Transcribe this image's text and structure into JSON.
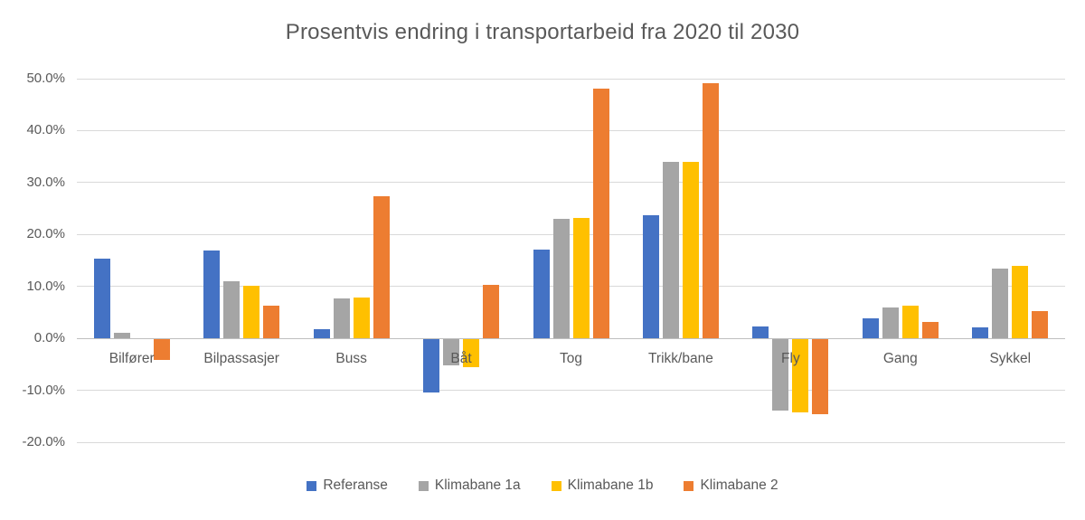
{
  "chart_data": {
    "type": "bar",
    "title": "Prosentvis endring i transportarbeid fra 2020 til 2030",
    "categories": [
      "Bilfører",
      "Bilpassasjer",
      "Buss",
      "Båt",
      "Tog",
      "Trikk/bane",
      "Fly",
      "Gang",
      "Sykkel"
    ],
    "series": [
      {
        "name": "Referanse",
        "color": "#4472C4",
        "values": [
          15.3,
          16.9,
          1.8,
          -10.2,
          17.1,
          23.7,
          2.3,
          3.9,
          2.2
        ]
      },
      {
        "name": "Klimabane 1a",
        "color": "#A5A5A5",
        "values": [
          1.0,
          11.0,
          7.6,
          -5.1,
          23.0,
          34.0,
          -13.8,
          5.9,
          13.4
        ]
      },
      {
        "name": "Klimabane 1b",
        "color": "#FFC000",
        "values": [
          0.0,
          10.2,
          7.9,
          -5.4,
          23.2,
          34.0,
          -14.0,
          6.3,
          14.0
        ]
      },
      {
        "name": "Klimabane 2",
        "color": "#ED7D31",
        "values": [
          -4.0,
          6.3,
          27.4,
          10.3,
          48.0,
          49.1,
          -14.5,
          3.2,
          5.3
        ]
      }
    ],
    "y_axis": {
      "min": -20,
      "max": 50,
      "step": 10,
      "unit": "percent",
      "tick_labels": [
        "50.0%",
        "40.0%",
        "30.0%",
        "20.0%",
        "10.0%",
        "0.0%",
        "-10.0%",
        "-20.0%"
      ]
    },
    "grid": true,
    "legend_position": "bottom"
  },
  "colors": {
    "text": "#595959",
    "gridline": "#D9D9D9",
    "axis_line": "#BFBFBF",
    "background": "#FFFFFF"
  }
}
